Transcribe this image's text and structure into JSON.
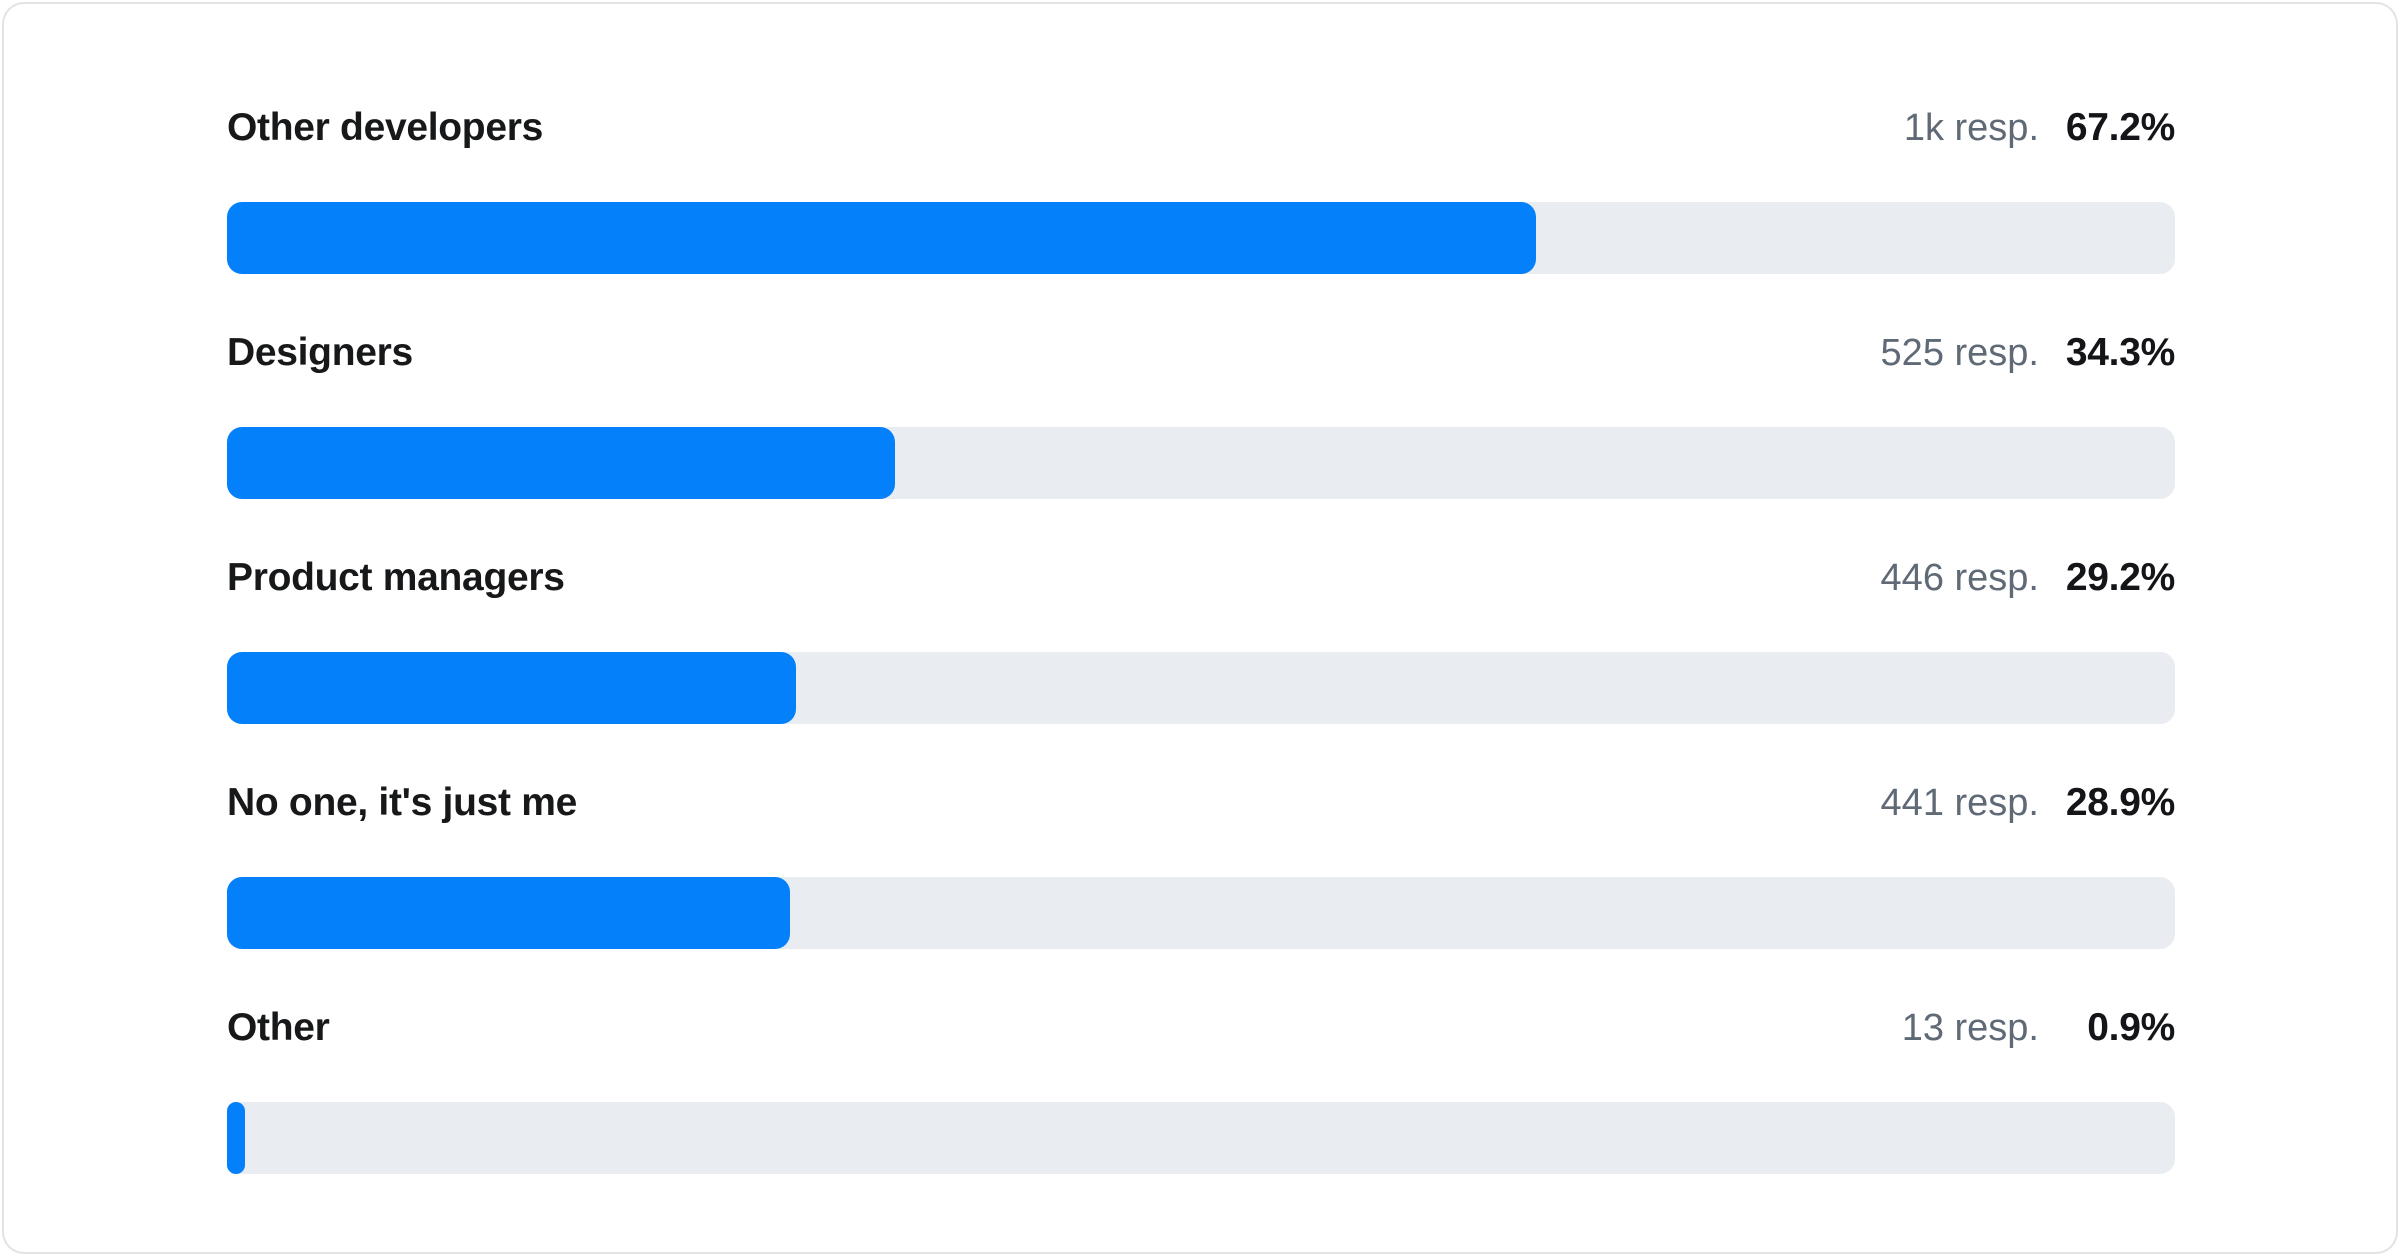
{
  "chart_data": {
    "type": "bar",
    "orientation": "horizontal",
    "categories": [
      "Other developers",
      "Designers",
      "Product managers",
      "No one, it's just me",
      "Other"
    ],
    "values": [
      67.2,
      34.3,
      29.2,
      28.9,
      0.9
    ],
    "value_labels": [
      "67.2%",
      "34.3%",
      "29.2%",
      "28.9%",
      "0.9%"
    ],
    "response_labels": [
      "1k resp.",
      "525 resp.",
      "446 resp.",
      "441 resp.",
      "13 resp."
    ],
    "xlim": [
      0,
      100
    ],
    "unit": "percent",
    "title": "",
    "grid": false,
    "legend": false
  },
  "colors": {
    "bar_fill": "#0580fb",
    "bar_track": "#e9ecf0",
    "category_label": "#17181a",
    "response_text": "#5f6a76",
    "percent_text": "#141519",
    "card_border": "#e2e3e6",
    "card_background": "#ffffff"
  }
}
